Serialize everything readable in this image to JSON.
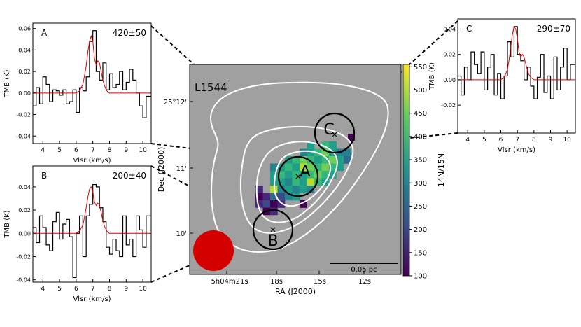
{
  "map": {
    "source_label": "L1544",
    "xlabel": "RA (J2000)",
    "ylabel": "Dec (J2000)",
    "ra_ticks": [
      "5h04m21s",
      "18s",
      "15s",
      "12s"
    ],
    "dec_ticks": [
      "25°12'",
      "11'",
      "10'"
    ],
    "scalebar_label": "0.05 pc",
    "colorbar": {
      "label": "14N/15N",
      "ticks": [
        100,
        150,
        200,
        250,
        300,
        350,
        400,
        450,
        500,
        550
      ],
      "range": [
        100,
        555
      ]
    },
    "circle_labels": [
      "A",
      "B",
      "C"
    ],
    "background_color": "#a0a0a0",
    "beam_color": "#d40000",
    "contour_color": "#ffffff"
  },
  "chart_data": [
    {
      "type": "line",
      "panel": "A",
      "annotation": "420±50",
      "xlabel": "Vlsr (km/s)",
      "ylabel": "TMB (K)",
      "xlim": [
        3.4,
        10.5
      ],
      "ylim": [
        -0.047,
        0.065
      ],
      "xticks": [
        4,
        5,
        6,
        7,
        8,
        9,
        10
      ],
      "yticks": [
        -0.04,
        -0.02,
        0.0,
        0.02,
        0.04,
        0.06
      ],
      "step_x": [
        3.4,
        3.6,
        3.8,
        4.0,
        4.2,
        4.4,
        4.6,
        4.8,
        5.0,
        5.2,
        5.4,
        5.6,
        5.8,
        6.0,
        6.2,
        6.4,
        6.6,
        6.8,
        7.0,
        7.2,
        7.4,
        7.6,
        7.8,
        8.0,
        8.2,
        8.4,
        8.6,
        8.8,
        9.0,
        9.2,
        9.4,
        9.6,
        9.8,
        10.0,
        10.2
      ],
      "step_y": [
        -0.012,
        0.005,
        -0.01,
        0.015,
        0.008,
        -0.008,
        0.003,
        0.002,
        -0.002,
        0.003,
        -0.01,
        -0.008,
        0.003,
        -0.018,
        0.005,
        0.002,
        0.015,
        0.048,
        0.058,
        0.02,
        0.012,
        0.028,
        0.003,
        0.018,
        0.005,
        0.008,
        0.02,
        0.003,
        0.01,
        0.022,
        0.012,
        0.0,
        -0.012,
        -0.023,
        -0.003
      ],
      "fit_x": [
        3.4,
        6.0,
        6.2,
        6.4,
        6.5,
        6.6,
        6.7,
        6.8,
        6.9,
        7.0,
        7.1,
        7.2,
        7.3,
        7.4,
        7.5,
        7.6,
        7.7,
        7.8,
        7.9,
        8.0,
        8.2,
        10.5
      ],
      "fit_y": [
        0,
        0,
        0.002,
        0.008,
        0.016,
        0.025,
        0.038,
        0.048,
        0.053,
        0.048,
        0.032,
        0.026,
        0.03,
        0.028,
        0.02,
        0.012,
        0.007,
        0.003,
        0.001,
        0,
        0,
        0
      ]
    },
    {
      "type": "line",
      "panel": "B",
      "annotation": "200±40",
      "xlabel": "Vlsr (km/s)",
      "ylabel": "TMB (K)",
      "xlim": [
        3.4,
        10.5
      ],
      "ylim": [
        -0.042,
        0.058
      ],
      "xticks": [
        4,
        5,
        6,
        7,
        8,
        9,
        10
      ],
      "yticks": [
        -0.04,
        -0.02,
        0.0,
        0.02,
        0.04
      ],
      "step_x": [
        3.4,
        3.6,
        3.8,
        4.0,
        4.2,
        4.4,
        4.6,
        4.8,
        5.0,
        5.2,
        5.4,
        5.6,
        5.8,
        6.0,
        6.2,
        6.4,
        6.6,
        6.8,
        7.0,
        7.2,
        7.4,
        7.6,
        7.8,
        8.0,
        8.2,
        8.4,
        8.6,
        8.8,
        9.0,
        9.2,
        9.4,
        9.6,
        9.8,
        10.0,
        10.2
      ],
      "step_y": [
        0.005,
        -0.008,
        0.015,
        0.005,
        -0.01,
        -0.015,
        0.01,
        0.018,
        -0.005,
        0.008,
        0.012,
        -0.003,
        -0.038,
        0.0,
        0.015,
        -0.02,
        0.015,
        0.025,
        0.042,
        0.04,
        0.022,
        0.01,
        -0.012,
        -0.018,
        -0.005,
        -0.015,
        -0.02,
        0.015,
        -0.01,
        -0.005,
        -0.02,
        0.015,
        0.003,
        -0.012,
        0.015
      ],
      "fit_x": [
        3.4,
        6.0,
        6.2,
        6.4,
        6.5,
        6.6,
        6.7,
        6.8,
        6.9,
        7.0,
        7.1,
        7.2,
        7.3,
        7.4,
        7.5,
        7.6,
        7.7,
        7.8,
        7.9,
        8.0,
        8.2,
        10.5
      ],
      "fit_y": [
        0,
        0,
        0.002,
        0.007,
        0.014,
        0.022,
        0.031,
        0.038,
        0.04,
        0.036,
        0.027,
        0.024,
        0.026,
        0.024,
        0.018,
        0.011,
        0.006,
        0.003,
        0.001,
        0,
        0,
        0
      ]
    },
    {
      "type": "line",
      "panel": "C",
      "annotation": "290±70",
      "xlabel": "Vlsr (km/s)",
      "ylabel": "TMB (K)",
      "xlim": [
        3.4,
        10.5
      ],
      "ylim": [
        -0.042,
        0.048
      ],
      "xticks": [
        4,
        5,
        6,
        7,
        8,
        9,
        10
      ],
      "yticks": [
        -0.02,
        0.0,
        0.02,
        0.04
      ],
      "step_x": [
        3.4,
        3.6,
        3.8,
        4.0,
        4.2,
        4.4,
        4.6,
        4.8,
        5.0,
        5.2,
        5.4,
        5.6,
        5.8,
        6.0,
        6.2,
        6.4,
        6.6,
        6.8,
        7.0,
        7.2,
        7.4,
        7.6,
        7.8,
        8.0,
        8.2,
        8.4,
        8.6,
        8.8,
        9.0,
        9.2,
        9.4,
        9.6,
        9.8,
        10.0,
        10.2
      ],
      "step_y": [
        0.003,
        -0.012,
        0.01,
        0.0,
        0.022,
        0.012,
        0.005,
        0.022,
        -0.008,
        0.01,
        0.02,
        -0.012,
        0.005,
        -0.015,
        0.003,
        0.03,
        0.018,
        0.042,
        0.02,
        0.015,
        0.0,
        0.01,
        -0.005,
        -0.015,
        0.002,
        0.02,
        -0.01,
        0.003,
        -0.015,
        0.018,
        -0.008,
        0.01,
        0.025,
        0.0,
        0.012
      ],
      "fit_x": [
        3.4,
        6.0,
        6.2,
        6.4,
        6.5,
        6.6,
        6.7,
        6.8,
        6.9,
        7.0,
        7.1,
        7.2,
        7.3,
        7.4,
        7.5,
        7.6,
        7.7,
        7.8,
        7.9,
        8.0,
        8.2,
        10.5
      ],
      "fit_y": [
        0,
        0,
        0.002,
        0.008,
        0.016,
        0.026,
        0.036,
        0.042,
        0.04,
        0.032,
        0.022,
        0.018,
        0.02,
        0.018,
        0.013,
        0.008,
        0.004,
        0.002,
        0.001,
        0,
        0,
        0
      ]
    }
  ]
}
